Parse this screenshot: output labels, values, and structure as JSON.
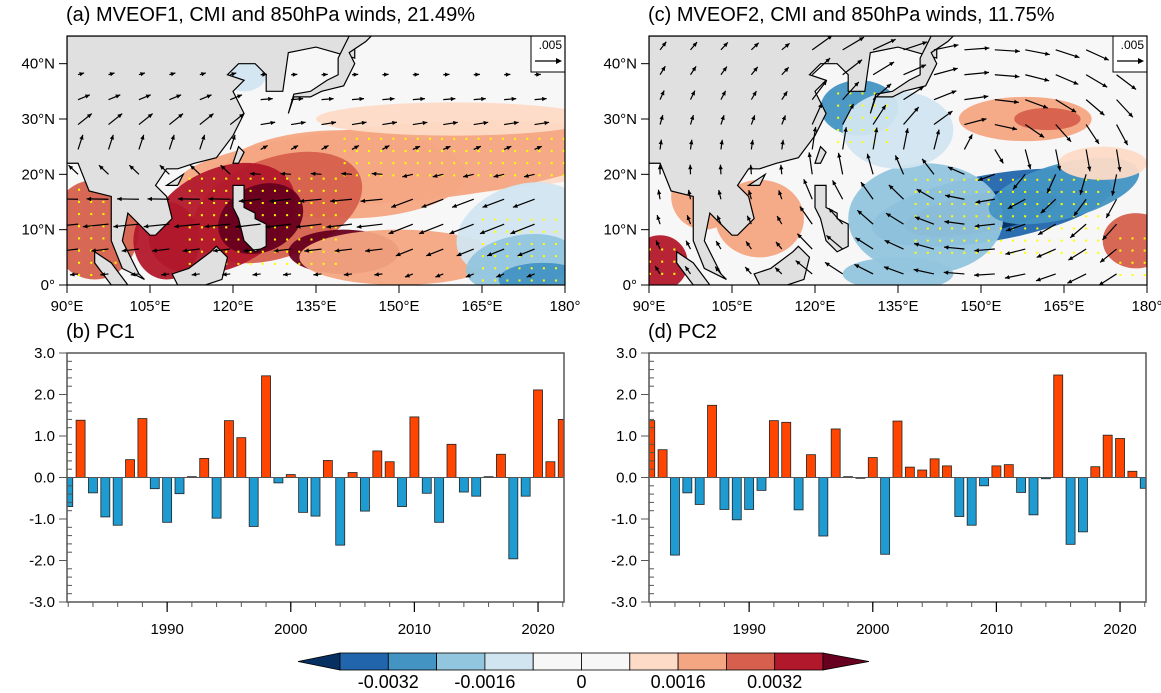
{
  "figure": {
    "colors": {
      "land": "#e0e0e0",
      "positive_bar": "#ff4500",
      "negative_bar": "#1e9bd0",
      "stipple": "#ffff00",
      "vector": "#000000"
    },
    "colorbar": {
      "labels": [
        "-0.0032",
        "-0.0016",
        "0",
        "0.0016",
        "0.0032"
      ],
      "levels": [
        -0.0032,
        -0.0024,
        -0.0016,
        -0.0008,
        0,
        0.0008,
        0.0016,
        0.0024,
        0.0032
      ],
      "colors": [
        "#053061",
        "#2166ac",
        "#4393c3",
        "#92c5de",
        "#d1e5f0",
        "#f7f7f7",
        "#f7f7f7",
        "#fddbc7",
        "#f4a582",
        "#d6604d",
        "#b2182b",
        "#67001f"
      ]
    },
    "reference_vector_label": ".005"
  },
  "chart_data": [
    {
      "type": "heatmap",
      "panel": "a",
      "title": "(a) MVEOF1, CMI and 850hPa winds, 21.49%",
      "xlabel": "",
      "ylabel": "",
      "x_ticks": [
        "90°E",
        "105°E",
        "120°E",
        "135°E",
        "150°E",
        "165°E",
        "180°"
      ],
      "y_ticks": [
        "0°",
        "10°N",
        "20°N",
        "30°N",
        "40°N"
      ],
      "xlim": [
        90,
        180
      ],
      "ylim": [
        0,
        45
      ],
      "overlay": "850hPa wind vectors with stippling for significance",
      "reference_vector": ".005",
      "features": [
        {
          "region": "South China Sea / Philippines 5-20°N 105-140°E",
          "sign": "positive",
          "strength": "strong"
        },
        {
          "region": "Subtropical band 20-30°N 130-180°E",
          "sign": "positive",
          "strength": "moderate"
        },
        {
          "region": "Tropical central Pacific 0-15°N 160-180°E",
          "sign": "negative",
          "strength": "moderate"
        },
        {
          "region": "Bay of Bengal / Indochina 5-20°N 90-100°E",
          "sign": "positive",
          "strength": "moderate"
        }
      ]
    },
    {
      "type": "heatmap",
      "panel": "c",
      "title": "(c) MVEOF2, CMI and 850hPa winds, 11.75%",
      "xlabel": "",
      "ylabel": "",
      "x_ticks": [
        "90°E",
        "105°E",
        "120°E",
        "135°E",
        "150°E",
        "165°E",
        "180°"
      ],
      "y_ticks": [
        "0°",
        "10°N",
        "20°N",
        "30°N",
        "40°N"
      ],
      "xlim": [
        90,
        180
      ],
      "ylim": [
        0,
        45
      ],
      "overlay": "850hPa wind vectors with stippling for significance",
      "reference_vector": ".005",
      "features": [
        {
          "region": "Western North Pacific 8-20°N 135-170°E",
          "sign": "negative",
          "strength": "strong"
        },
        {
          "region": "East China Sea / Japan 25-35°N 120-135°E",
          "sign": "negative",
          "strength": "moderate"
        },
        {
          "region": "Subtropical 25-35°N 145-170°E",
          "sign": "positive",
          "strength": "moderate"
        },
        {
          "region": "Bay of Bengal 0-10°N 90-95°E",
          "sign": "positive",
          "strength": "strong"
        },
        {
          "region": "Indochina / SCS 5-20°N 100-115°E",
          "sign": "positive",
          "strength": "weak"
        }
      ]
    },
    {
      "type": "bar",
      "panel": "b",
      "title": "(b) PC1",
      "xlabel": "",
      "ylabel": "",
      "ylim": [
        -3.0,
        3.0
      ],
      "xlim": [
        1982,
        2022
      ],
      "y_ticks": [
        "3.0",
        "2.0",
        "1.0",
        "0.0",
        "-1.0",
        "-2.0",
        "-3.0"
      ],
      "x_ticks": [
        "1990",
        "2000",
        "2010",
        "2020"
      ],
      "x_tick_values": [
        1990,
        2000,
        2010,
        2020
      ],
      "y_tick_values": [
        3,
        2,
        1,
        0,
        -1,
        -2,
        -3
      ],
      "years": [
        1982,
        1983,
        1984,
        1985,
        1986,
        1987,
        1988,
        1989,
        1990,
        1991,
        1992,
        1993,
        1994,
        1995,
        1996,
        1997,
        1998,
        1999,
        2000,
        2001,
        2002,
        2003,
        2004,
        2005,
        2006,
        2007,
        2008,
        2009,
        2010,
        2011,
        2012,
        2013,
        2014,
        2015,
        2016,
        2017,
        2018,
        2019,
        2020,
        2021,
        2022
      ],
      "values": [
        -0.7,
        1.38,
        -0.37,
        -0.95,
        -1.15,
        0.43,
        1.42,
        -0.27,
        -1.08,
        -0.39,
        0.02,
        0.46,
        -0.98,
        1.37,
        0.96,
        -1.18,
        2.45,
        -0.13,
        0.07,
        -0.84,
        -0.93,
        0.41,
        -1.63,
        0.12,
        -0.81,
        0.64,
        0.38,
        -0.7,
        1.46,
        -0.38,
        -1.08,
        0.8,
        -0.35,
        -0.45,
        0.02,
        0.56,
        -1.96,
        -0.45,
        2.11,
        0.38,
        1.4
      ]
    },
    {
      "type": "bar",
      "panel": "d",
      "title": "(d) PC2",
      "xlabel": "",
      "ylabel": "",
      "ylim": [
        -3.0,
        3.0
      ],
      "xlim": [
        1982,
        2022
      ],
      "y_ticks": [
        "3.0",
        "2.0",
        "1.0",
        "0.0",
        "-1.0",
        "-2.0",
        "-3.0"
      ],
      "x_ticks": [
        "1990",
        "2000",
        "2010",
        "2020"
      ],
      "x_tick_values": [
        1990,
        2000,
        2010,
        2020
      ],
      "y_tick_values": [
        3,
        2,
        1,
        0,
        -1,
        -2,
        -3
      ],
      "years": [
        1982,
        1983,
        1984,
        1985,
        1986,
        1987,
        1988,
        1989,
        1990,
        1991,
        1992,
        1993,
        1994,
        1995,
        1996,
        1997,
        1998,
        1999,
        2000,
        2001,
        2002,
        2003,
        2004,
        2005,
        2006,
        2007,
        2008,
        2009,
        2010,
        2011,
        2012,
        2013,
        2014,
        2015,
        2016,
        2017,
        2018,
        2019,
        2020,
        2021,
        2022
      ],
      "values": [
        1.37,
        0.67,
        -1.87,
        -0.37,
        -0.65,
        1.74,
        -0.77,
        -1.02,
        -0.77,
        -0.31,
        1.37,
        1.33,
        -0.78,
        0.55,
        -1.41,
        1.17,
        0.02,
        0.0,
        0.48,
        -1.85,
        1.36,
        0.25,
        0.18,
        0.45,
        0.28,
        -0.94,
        -1.15,
        -0.2,
        0.28,
        0.31,
        -0.36,
        -0.9,
        -0.03,
        2.47,
        -1.61,
        -1.31,
        0.26,
        1.02,
        0.94,
        0.15,
        -0.26
      ]
    }
  ]
}
